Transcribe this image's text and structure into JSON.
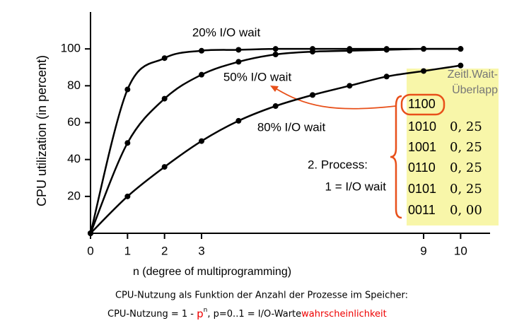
{
  "chart_data": {
    "type": "line",
    "x_label": "n (degree of multiprogramming)",
    "y_label": "CPU utilization (in percent)",
    "x": [
      0,
      1,
      2,
      3,
      4,
      5,
      6,
      7,
      8,
      9,
      10
    ],
    "series": [
      {
        "name": "20% I/O wait",
        "color": "#000000",
        "values": [
          0,
          78,
          95,
          99,
          99.5,
          100,
          100,
          100,
          100,
          100,
          100
        ]
      },
      {
        "name": "50% I/O wait",
        "color": "#000000",
        "values": [
          0,
          49,
          73,
          86,
          93,
          97,
          98.5,
          99,
          99.5,
          100,
          100
        ]
      },
      {
        "name": "80% I/O wait",
        "color": "#000000",
        "values": [
          0,
          20,
          36,
          50,
          61,
          69,
          75,
          80,
          85,
          88,
          91
        ]
      }
    ],
    "xlim": [
      0,
      10.7
    ],
    "ylim": [
      0,
      120
    ],
    "xticks": [
      0,
      1,
      2,
      3,
      9,
      10
    ],
    "yticks": [
      20,
      40,
      60,
      80,
      100
    ],
    "box": {
      "title": "Zeitl.Wait-Überlapp",
      "rows": [
        [
          "1100"
        ],
        [
          "1010",
          "0, 25"
        ],
        [
          "1001",
          "0, 25"
        ],
        [
          "0110",
          "0, 25"
        ],
        [
          "0101",
          "0, 25"
        ],
        [
          "0011",
          "0, 00"
        ]
      ]
    },
    "annotations": [
      "2.  Process:",
      "1 = I/O wait"
    ]
  },
  "caption": {
    "line1": "CPU-Nutzung als Funktion der Anzahl der Prozesse  im  Speicher:",
    "line2a": "CPU-Nutzung = 1 - ",
    "p": "p",
    "n": "n",
    "line2b": ", p=0..1 = I/O-Warte",
    "line2c": "wahrscheinlichkeit"
  }
}
